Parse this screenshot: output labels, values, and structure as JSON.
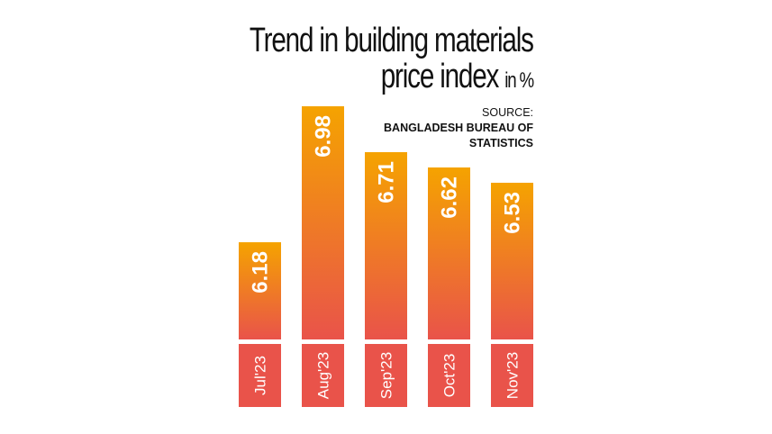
{
  "chart_data": {
    "type": "bar",
    "title": "Trend in building materials price index",
    "title_line1": "Trend in building materials",
    "title_line2": "price index",
    "unit": "in %",
    "source_label": "SOURCE:",
    "source": "BANGLADESH BUREAU OF STATISTICS",
    "categories": [
      "Jul'23",
      "Aug'23",
      "Sep'23",
      "Oct'23",
      "Nov'23"
    ],
    "values": [
      6.18,
      6.98,
      6.71,
      6.62,
      6.53
    ],
    "data_labels": [
      "6.18",
      "6.98",
      "6.71",
      "6.62",
      "6.53"
    ],
    "grid": false,
    "colors": {
      "bar_top": "#f5a300",
      "bar_bottom": "#e9534a",
      "label_box": "#e9534a",
      "text": "#ffffff"
    }
  }
}
